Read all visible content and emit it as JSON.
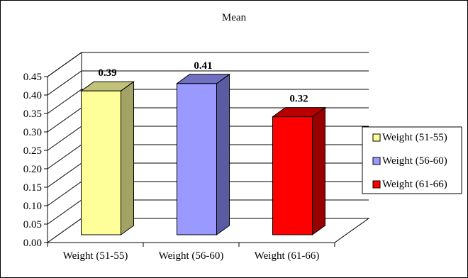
{
  "chart_data": {
    "type": "bar",
    "title": "Mean",
    "categories": [
      "Weight (51-55)",
      "Weight (56-60)",
      "Weight (61-66)"
    ],
    "values": [
      0.39,
      0.41,
      0.32
    ],
    "data_labels": [
      "0.39",
      "0.41",
      "0.32"
    ],
    "ylim": [
      0,
      0.45
    ],
    "yticks": [
      "0.00",
      "0.05",
      "0.10",
      "0.15",
      "0.20",
      "0.25",
      "0.30",
      "0.35",
      "0.40",
      "0.45"
    ],
    "xlabel": "",
    "ylabel": "",
    "grid": true,
    "legend_position": "right",
    "legend": [
      {
        "name": "Weight (51-55)",
        "color": "#ffff99"
      },
      {
        "name": "Weight (56-60)",
        "color": "#9999ff"
      },
      {
        "name": "Weight (61-66)",
        "color": "#ff0000"
      }
    ],
    "colors": {
      "bar_front": [
        "#ffff99",
        "#9999ff",
        "#ff0000"
      ],
      "bar_side": [
        "#a3a366",
        "#5b5ba3",
        "#990000"
      ],
      "bar_top": [
        "#c2c27a",
        "#7070c2",
        "#b80000"
      ]
    }
  }
}
